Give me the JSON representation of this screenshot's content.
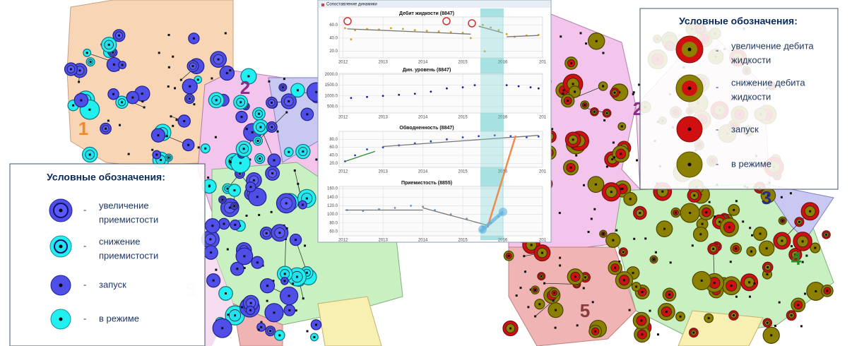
{
  "window": {
    "title": "Сопоставление динамики"
  },
  "map": {
    "zone_labels": [
      "1",
      "2",
      "5",
      "2",
      "3",
      "4",
      "5"
    ]
  },
  "legend_left": {
    "title": "Условные обозначения:",
    "dash": "-",
    "items": [
      [
        "увеличение",
        "приемистости"
      ],
      [
        "снижение",
        "приемистости"
      ],
      [
        "запуск"
      ],
      [
        "в режиме"
      ]
    ]
  },
  "legend_right": {
    "title": "Условные обозначения:",
    "dash": "-",
    "items": [
      [
        "увеличение дебита",
        "жидкости"
      ],
      [
        "снижение дебита",
        "жидкости"
      ],
      [
        "запуск"
      ],
      [
        "в режиме"
      ]
    ]
  },
  "chart_data": [
    {
      "type": "scatter",
      "title": "Дебит жидкости (8847)",
      "grid": true,
      "xlim": [
        2011.9,
        2017.0
      ],
      "xticks": [
        2012,
        2013,
        2014,
        2015,
        2016,
        {
          "value": 2017,
          "label": "201"
        }
      ],
      "ylim": [
        10,
        72
      ],
      "yticks": [
        {
          "value": 60,
          "label": "60.0"
        },
        {
          "value": 40,
          "label": "40.0"
        },
        {
          "value": 20,
          "label": "20.0"
        }
      ],
      "series": [
        {
          "mode": "markers",
          "color": "#d4a017",
          "x": [
            2012.05,
            2012.2,
            2012.3,
            2012.6,
            2012.9,
            2013.2,
            2013.5,
            2013.8,
            2014.1,
            2014.4,
            2014.7,
            2015.0,
            2015.2,
            2015.5,
            2015.55,
            2015.7,
            2015.9,
            2016.1,
            2016.3,
            2016.6,
            2016.9
          ],
          "values": [
            55,
            38,
            52,
            54,
            53,
            55,
            54,
            52,
            51,
            50,
            49,
            48,
            40,
            60,
            20,
            56,
            52,
            46,
            42,
            44,
            45
          ]
        },
        {
          "mode": "line",
          "color": "#777777",
          "x": [
            2012.1,
            2015.2
          ],
          "values": [
            54,
            46
          ]
        },
        {
          "mode": "line",
          "color": "#777777",
          "x": [
            2015.4,
            2016.0
          ],
          "values": [
            58,
            48
          ]
        },
        {
          "mode": "line",
          "color": "#777777",
          "x": [
            2016.1,
            2016.9
          ],
          "values": [
            42,
            44
          ]
        }
      ]
    },
    {
      "type": "scatter",
      "title": "Дин. уровень (8847)",
      "grid": true,
      "xlim": [
        2011.9,
        2017.0
      ],
      "xticks": [
        2012,
        2013,
        2014,
        2015,
        2016,
        {
          "value": 2017,
          "label": "201"
        }
      ],
      "ylim": [
        200,
        2050
      ],
      "yticks": [
        {
          "value": 2000,
          "label": "2000.0"
        },
        {
          "value": 1500,
          "label": "1500.0"
        },
        {
          "value": 1000,
          "label": "1000.0"
        },
        {
          "value": 500,
          "label": "500.0"
        }
      ],
      "series": [
        {
          "mode": "markers",
          "color": "#1a1a8c",
          "x": [
            2012.2,
            2012.6,
            2013.0,
            2013.4,
            2013.8,
            2014.2,
            2014.6,
            2015.0,
            2015.3,
            2016.1,
            2016.4,
            2016.7,
            2016.9
          ],
          "values": [
            900,
            950,
            1000,
            1050,
            1100,
            1200,
            1350,
            1400,
            1500,
            1500,
            1450,
            1400,
            1350
          ]
        }
      ]
    },
    {
      "type": "scatter",
      "title": "Обводненность (8847)",
      "grid": true,
      "xlim": [
        2011.9,
        2017.0
      ],
      "xticks": [
        2012,
        2013,
        2014,
        2015,
        2016,
        {
          "value": 2017,
          "label": "201"
        }
      ],
      "ylim": [
        10,
        100
      ],
      "yticks": [
        {
          "value": 80,
          "label": "80.0"
        },
        {
          "value": 60,
          "label": "60.0"
        },
        {
          "value": 40,
          "label": "40.0"
        },
        {
          "value": 20,
          "label": "20.0"
        }
      ],
      "series": [
        {
          "mode": "markers",
          "color": "#1f3fbf",
          "x": [
            2012.05,
            2012.3,
            2012.6,
            2013.0,
            2013.4,
            2013.8,
            2014.2,
            2014.6,
            2015.0,
            2015.4,
            2015.8,
            2016.2,
            2016.6,
            2016.9
          ],
          "values": [
            25,
            40,
            55,
            60,
            65,
            70,
            75,
            80,
            85,
            88,
            90,
            88,
            85,
            87
          ]
        },
        {
          "mode": "line",
          "color": "#2e8b2e",
          "x": [
            2012.05,
            2012.8
          ],
          "values": [
            25,
            50
          ]
        },
        {
          "mode": "line",
          "color": "#777777",
          "x": [
            2013.0,
            2016.9
          ],
          "values": [
            62,
            90
          ]
        }
      ]
    },
    {
      "type": "scatter",
      "title": "Приемистость (8855)",
      "grid": true,
      "xlim": [
        2011.9,
        2017.0
      ],
      "xticks": [
        2012,
        2013,
        2014,
        2015,
        2016,
        {
          "value": 2017,
          "label": "201"
        }
      ],
      "ylim": [
        50,
        165
      ],
      "yticks": [
        {
          "value": 160,
          "label": "160.0"
        },
        {
          "value": 140,
          "label": "140.0"
        },
        {
          "value": 120,
          "label": "120.0"
        },
        {
          "value": 100,
          "label": "100.0"
        },
        {
          "value": 80,
          "label": "80.0"
        },
        {
          "value": 60,
          "label": "60.0"
        }
      ],
      "series": [
        {
          "mode": "markers",
          "color": "#5b9bd5",
          "x": [
            2012.1,
            2012.5,
            2012.9,
            2013.3,
            2013.7,
            2014.0,
            2014.3,
            2014.7,
            2015.1,
            2015.5,
            2015.7,
            2015.9
          ],
          "values": [
            110,
            108,
            112,
            115,
            120,
            118,
            110,
            100,
            90,
            72,
            80,
            95
          ]
        },
        {
          "mode": "line",
          "color": "#777777",
          "x": [
            2012.05,
            2014.0
          ],
          "values": [
            110,
            110
          ]
        },
        {
          "mode": "line",
          "color": "#777777",
          "x": [
            2014.0,
            2015.6
          ],
          "values": [
            115,
            75
          ]
        }
      ]
    }
  ]
}
